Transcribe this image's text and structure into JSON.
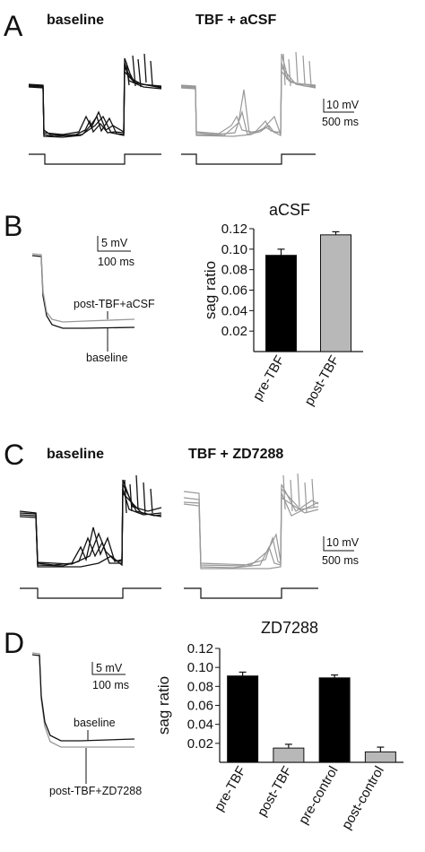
{
  "panels": {
    "A": {
      "letter": "A",
      "left_title": "baseline",
      "right_title": "TBF + aCSF",
      "scale_mv": "10 mV",
      "scale_ms": "500 ms"
    },
    "B": {
      "letter": "B",
      "scale_mv": "5 mV",
      "scale_ms": "100 ms",
      "trace_label_post": "post-TBF+aCSF",
      "trace_label_base": "baseline"
    },
    "C": {
      "letter": "C",
      "left_title": "baseline",
      "right_title": "TBF + ZD7288",
      "scale_mv": "10 mV",
      "scale_ms": "500 ms"
    },
    "D": {
      "letter": "D",
      "scale_mv": "5 mV",
      "scale_ms": "100 ms",
      "trace_label_base": "baseline",
      "trace_label_post": "post-TBF+ZD7288"
    }
  },
  "colors": {
    "black_bar": "#000000",
    "gray_bar": "#b8b8b8",
    "trace_black": "#111111",
    "trace_gray": "#9a9a9a"
  },
  "chart_data": [
    {
      "type": "bar",
      "title": "aCSF",
      "ylabel": "sag ratio",
      "categories": [
        "pre-TBF",
        "post-TBF"
      ],
      "values": [
        0.094,
        0.114
      ],
      "errors": [
        0.006,
        0.003
      ],
      "ylim": [
        0.0,
        0.12
      ],
      "yticks": [
        "0.12",
        "0.10",
        "0.08",
        "0.06",
        "0.04",
        "0.02"
      ],
      "bar_colors": [
        "#000000",
        "#b8b8b8"
      ],
      "grid": false
    },
    {
      "type": "bar",
      "title": "ZD7288",
      "ylabel": "sag ratio",
      "categories": [
        "pre-TBF",
        "post-TBF",
        "pre-control",
        "post-control"
      ],
      "values": [
        0.091,
        0.015,
        0.089,
        0.011
      ],
      "errors": [
        0.004,
        0.004,
        0.003,
        0.005
      ],
      "ylim": [
        0.0,
        0.12
      ],
      "yticks": [
        "0.12",
        "0.10",
        "0.08",
        "0.06",
        "0.04",
        "0.02"
      ],
      "bar_colors": [
        "#000000",
        "#b8b8b8",
        "#000000",
        "#b8b8b8"
      ],
      "grid": false
    }
  ]
}
